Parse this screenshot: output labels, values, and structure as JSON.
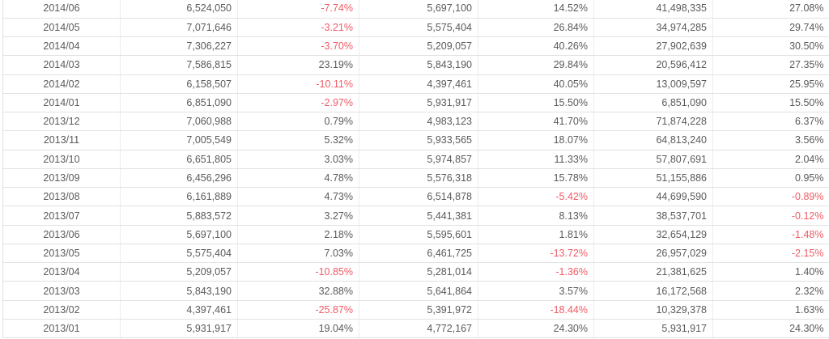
{
  "colors": {
    "text": "#5a5a5a",
    "negative": "#f15b65",
    "row_separator": "#e2e2e2",
    "column_separator": "#ededed",
    "row_background": "#ffffff"
  },
  "chart_data": {
    "type": "table",
    "note": "Monthly financial table; column headers are cropped out of the screenshot. Percent values beginning with '-' are rendered in red.",
    "rows": [
      [
        "2014/06",
        "6,524,050",
        "-7.74%",
        "5,697,100",
        "14.52%",
        "41,498,335",
        "27.08%"
      ],
      [
        "2014/05",
        "7,071,646",
        "-3.21%",
        "5,575,404",
        "26.84%",
        "34,974,285",
        "29.74%"
      ],
      [
        "2014/04",
        "7,306,227",
        "-3.70%",
        "5,209,057",
        "40.26%",
        "27,902,639",
        "30.50%"
      ],
      [
        "2014/03",
        "7,586,815",
        "23.19%",
        "5,843,190",
        "29.84%",
        "20,596,412",
        "27.35%"
      ],
      [
        "2014/02",
        "6,158,507",
        "-10.11%",
        "4,397,461",
        "40.05%",
        "13,009,597",
        "25.95%"
      ],
      [
        "2014/01",
        "6,851,090",
        "-2.97%",
        "5,931,917",
        "15.50%",
        "6,851,090",
        "15.50%"
      ],
      [
        "2013/12",
        "7,060,988",
        "0.79%",
        "4,983,123",
        "41.70%",
        "71,874,228",
        "6.37%"
      ],
      [
        "2013/11",
        "7,005,549",
        "5.32%",
        "5,933,565",
        "18.07%",
        "64,813,240",
        "3.56%"
      ],
      [
        "2013/10",
        "6,651,805",
        "3.03%",
        "5,974,857",
        "11.33%",
        "57,807,691",
        "2.04%"
      ],
      [
        "2013/09",
        "6,456,296",
        "4.78%",
        "5,576,318",
        "15.78%",
        "51,155,886",
        "0.95%"
      ],
      [
        "2013/08",
        "6,161,889",
        "4.73%",
        "6,514,878",
        "-5.42%",
        "44,699,590",
        "-0.89%"
      ],
      [
        "2013/07",
        "5,883,572",
        "3.27%",
        "5,441,381",
        "8.13%",
        "38,537,701",
        "-0.12%"
      ],
      [
        "2013/06",
        "5,697,100",
        "2.18%",
        "5,595,601",
        "1.81%",
        "32,654,129",
        "-1.48%"
      ],
      [
        "2013/05",
        "5,575,404",
        "7.03%",
        "6,461,725",
        "-13.72%",
        "26,957,029",
        "-2.15%"
      ],
      [
        "2013/04",
        "5,209,057",
        "-10.85%",
        "5,281,014",
        "-1.36%",
        "21,381,625",
        "1.40%"
      ],
      [
        "2013/03",
        "5,843,190",
        "32.88%",
        "5,641,864",
        "3.57%",
        "16,172,568",
        "2.32%"
      ],
      [
        "2013/02",
        "4,397,461",
        "-25.87%",
        "5,391,972",
        "-18.44%",
        "10,329,378",
        "1.63%"
      ],
      [
        "2013/01",
        "5,931,917",
        "19.04%",
        "4,772,167",
        "24.30%",
        "5,931,917",
        "24.30%"
      ]
    ]
  }
}
